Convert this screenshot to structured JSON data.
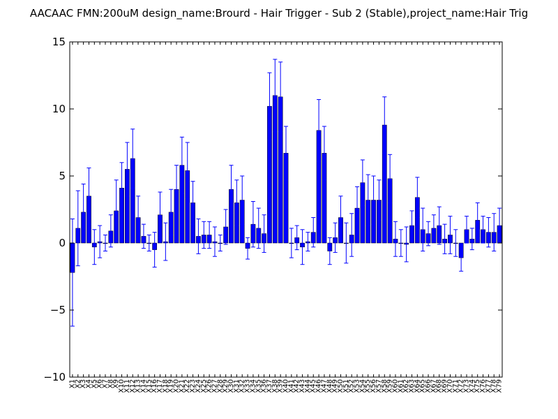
{
  "chart_data": {
    "type": "bar",
    "title": "AACAAC  FMN:200uM  design_name:Brourd - Hair Trigger - Sub 2 (Stable),project_name:Hair Trig",
    "xlabel": "",
    "ylabel": "",
    "ylim": [
      -10,
      15
    ],
    "yticks": [
      -10,
      -5,
      0,
      5,
      10,
      15
    ],
    "yticklabels": [
      "−10",
      "−5",
      "0",
      "5",
      "10",
      "15"
    ],
    "grid": false,
    "categories": [
      "X1",
      "X2",
      "X3",
      "X4",
      "X5",
      "X6",
      "X7",
      "X8",
      "X9",
      "X10",
      "X11",
      "X12",
      "X13",
      "X14",
      "X15",
      "X16",
      "X17",
      "X18",
      "X19",
      "X20",
      "X21",
      "X22",
      "X23",
      "X24",
      "X25",
      "X26",
      "X27",
      "X28",
      "X29",
      "X30",
      "X31",
      "X32",
      "X33",
      "X34",
      "X35",
      "X36",
      "X37",
      "X38",
      "X39",
      "X40",
      "X41",
      "X42",
      "X43",
      "X44",
      "X45",
      "X46",
      "X47",
      "X48",
      "X49",
      "X50",
      "X51",
      "X52",
      "X53",
      "X54",
      "X55",
      "X56",
      "X57",
      "X58",
      "X59",
      "X60",
      "X61",
      "X62",
      "X63",
      "X64",
      "X65",
      "X66",
      "X67",
      "X68",
      "X69",
      "X70",
      "X71",
      "X72",
      "X73",
      "X74",
      "X75",
      "X76",
      "X77",
      "X78",
      "X79"
    ],
    "xticklabels": [
      "X1",
      "X2",
      "X3",
      "X4",
      "X5",
      "X6",
      "X7",
      "X8",
      "X9",
      "X10",
      "X11",
      "X12",
      "X13",
      "X14",
      "X15",
      "X16",
      "X17",
      "X18",
      "X19",
      "X20",
      "X21",
      "X22",
      "X23",
      "X24",
      "X25",
      "X26",
      "X27",
      "X28",
      "X29",
      "X30",
      "X31",
      "X32",
      "X33",
      "X34",
      "X35",
      "X36",
      "X37",
      "X38",
      "X39",
      "X40",
      "X41",
      "X42",
      "X43",
      "X44",
      "X45",
      "X46",
      "X47",
      "X48",
      "X49",
      "X50",
      "X51",
      "X52",
      "X53",
      "X54",
      "X55",
      "X56",
      "X57",
      "X58",
      "X59",
      "X60",
      "X61",
      "X62",
      "X63",
      "X64",
      "X65",
      "X66",
      "X67",
      "X68",
      "X69",
      "X70",
      "X71",
      "X72",
      "X73",
      "X74",
      "X75",
      "X76",
      "X77",
      "X78",
      "X79"
    ],
    "values": [
      -2.2,
      1.1,
      2.3,
      3.5,
      -0.3,
      0.1,
      0.0,
      0.9,
      2.4,
      4.1,
      5.5,
      6.3,
      1.9,
      0.5,
      0.0,
      -0.5,
      2.1,
      0.1,
      2.3,
      4.0,
      5.8,
      5.4,
      3.0,
      0.5,
      0.6,
      0.6,
      0.1,
      0.0,
      1.2,
      4.0,
      3.0,
      3.2,
      -0.4,
      1.4,
      1.1,
      0.7,
      10.2,
      11.0,
      10.9,
      6.7,
      0.0,
      0.4,
      -0.3,
      0.1,
      0.8,
      8.4,
      6.7,
      -0.6,
      0.4,
      1.9,
      0.0,
      0.6,
      2.6,
      4.5,
      3.2,
      3.2,
      3.2,
      8.8,
      4.8,
      0.3,
      0.0,
      -0.1,
      1.3,
      3.4,
      1.0,
      0.7,
      1.1,
      1.3,
      0.3,
      0.6,
      0.0,
      -1.1,
      1.0,
      0.3,
      1.7,
      1.0,
      0.8,
      0.8,
      1.3
    ],
    "errors": [
      4.0,
      2.8,
      2.1,
      2.1,
      1.3,
      1.2,
      0.6,
      1.2,
      2.3,
      1.9,
      2.0,
      2.2,
      1.6,
      0.9,
      0.6,
      1.3,
      1.7,
      1.4,
      1.7,
      1.8,
      2.1,
      2.1,
      1.6,
      1.3,
      1.0,
      1.0,
      1.1,
      0.6,
      1.3,
      1.8,
      1.7,
      1.8,
      0.8,
      1.7,
      1.5,
      1.4,
      2.5,
      2.7,
      2.6,
      2.0,
      1.1,
      0.9,
      1.3,
      0.7,
      1.1,
      2.3,
      2.0,
      1.0,
      1.1,
      1.6,
      1.5,
      1.6,
      1.6,
      1.7,
      1.9,
      1.8,
      1.5,
      2.1,
      1.8,
      1.3,
      1.0,
      1.3,
      1.1,
      1.5,
      1.6,
      0.9,
      1.0,
      1.4,
      1.1,
      1.4,
      1.0,
      1.0,
      1.0,
      0.8,
      1.3,
      1.0,
      1.1,
      1.4,
      1.3
    ],
    "bar_color": "#0000ff",
    "error_color": "#0000ff",
    "edge_color": "#000000"
  }
}
